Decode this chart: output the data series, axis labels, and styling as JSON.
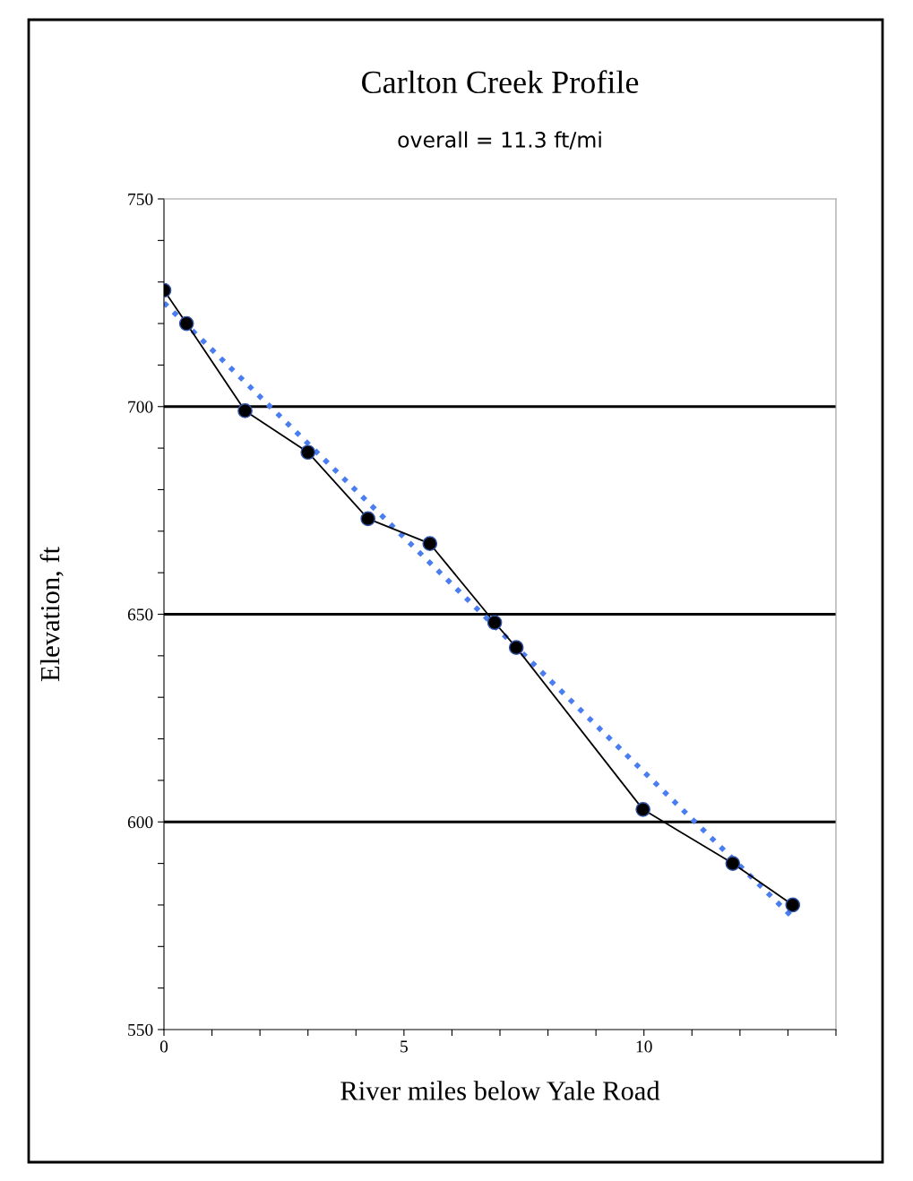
{
  "chart_data": {
    "type": "line",
    "title": "Carlton Creek Profile",
    "subtitle": "overall = 11.3 ft/mi",
    "xlabel": "River miles below Yale Road",
    "ylabel": "Elevation, ft",
    "xlim": [
      0,
      14
    ],
    "ylim": [
      550,
      750
    ],
    "xticks": [
      0,
      {
        "value": 1,
        "label": null
      },
      {
        "value": 2,
        "label": null
      },
      {
        "value": 3,
        "label": null
      },
      {
        "value": 4,
        "label": null
      },
      5,
      {
        "value": 6,
        "label": null
      },
      {
        "value": 7,
        "label": null
      },
      {
        "value": 8,
        "label": null
      },
      {
        "value": 9,
        "label": null
      },
      10,
      {
        "value": 11,
        "label": null
      },
      {
        "value": 12,
        "label": null
      },
      {
        "value": 13,
        "label": null
      },
      {
        "value": 14,
        "label": null
      }
    ],
    "yticks": [
      550,
      {
        "value": 560,
        "label": null
      },
      {
        "value": 570,
        "label": null
      },
      {
        "value": 580,
        "label": null
      },
      {
        "value": 590,
        "label": null
      },
      600,
      {
        "value": 610,
        "label": null
      },
      {
        "value": 620,
        "label": null
      },
      {
        "value": 630,
        "label": null
      },
      {
        "value": 640,
        "label": null
      },
      650,
      {
        "value": 660,
        "label": null
      },
      {
        "value": 670,
        "label": null
      },
      {
        "value": 680,
        "label": null
      },
      {
        "value": 690,
        "label": null
      },
      700,
      {
        "value": 710,
        "label": null
      },
      {
        "value": 720,
        "label": null
      },
      {
        "value": 730,
        "label": null
      },
      {
        "value": 740,
        "label": null
      },
      750
    ],
    "grid": "y",
    "series": [
      {
        "color": "#4a7ef0",
        "line_style": "dotted",
        "marker": "none",
        "x": [
          0,
          13.1
        ],
        "values": [
          725,
          577
        ]
      },
      {
        "color": "#000000",
        "line_style": "solid",
        "marker": "circle",
        "x": [
          0,
          0.47,
          1.69,
          3.0,
          4.25,
          5.54,
          6.89,
          7.34,
          9.98,
          11.85,
          13.1
        ],
        "values": [
          728,
          720,
          699,
          689,
          673,
          667,
          648,
          642,
          603,
          590,
          580
        ]
      }
    ]
  }
}
